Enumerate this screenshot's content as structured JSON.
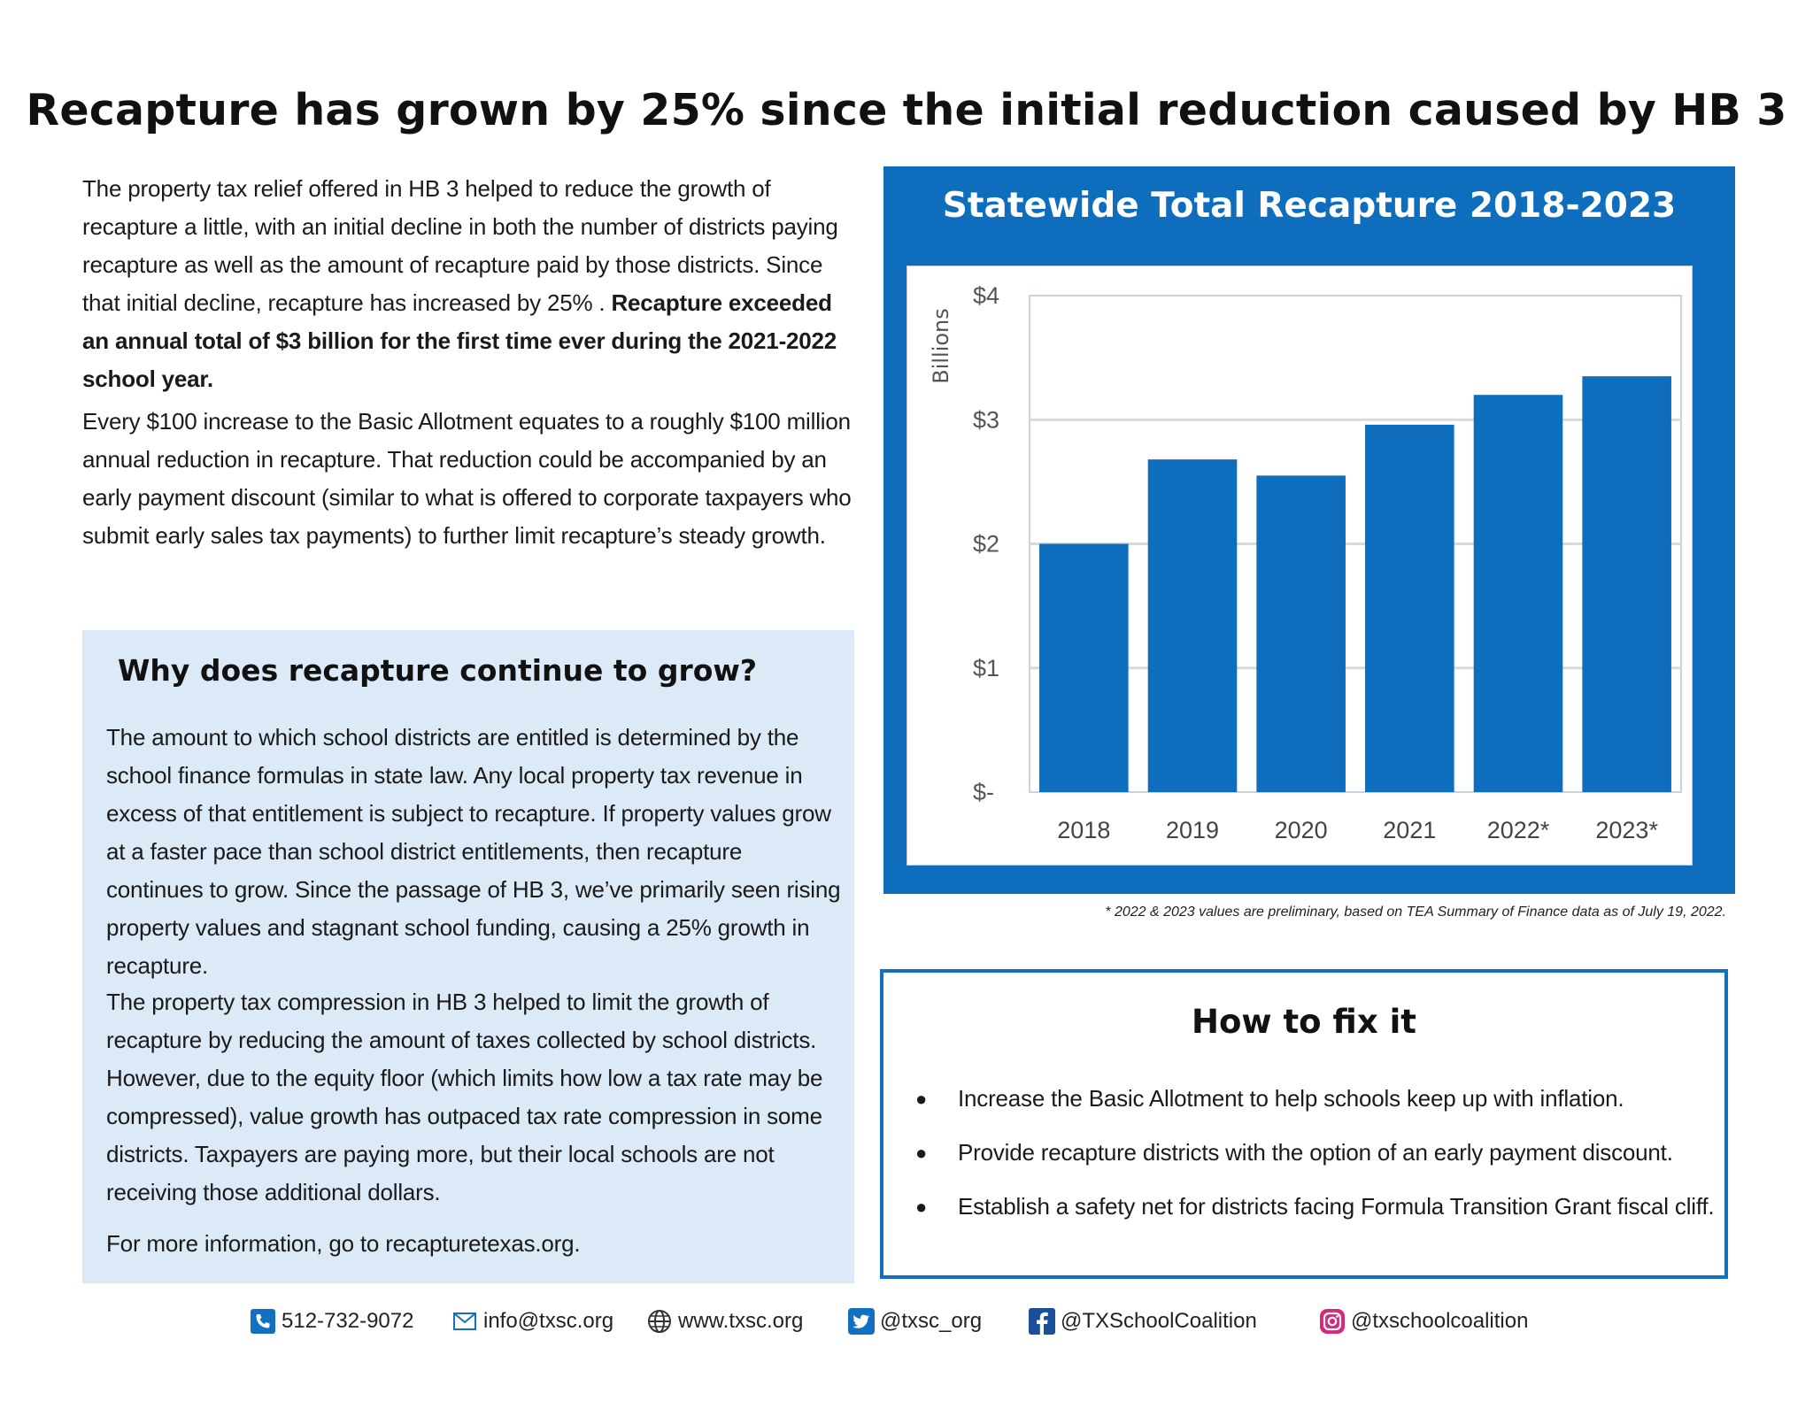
{
  "title": "Recapture has grown by 25% since the initial reduction caused by HB 3",
  "intro": {
    "p1_normal": "The property tax relief offered in HB 3 helped to reduce the growth of recapture a little, with an initial decline in both the number of districts paying recapture as well as the amount of recapture paid by those districts.  Since that initial decline, recapture has increased by 25% . ",
    "p1_bold": "Recapture exceeded an annual total of $3 billion for the first time ever during the 2021-2022 school year.",
    "p2": "Every $100 increase to the Basic Allotment equates to a roughly $100 million annual reduction in recapture.  That reduction could be accompanied by an early payment discount (similar to what is offered to corporate taxpayers who submit early sales tax payments) to further limit  recapture’s steady growth."
  },
  "why": {
    "title": "Why does recapture continue to grow?",
    "p1": "The amount to which school districts are entitled is determined by the school finance formulas in state law.  Any local property tax revenue in excess of that entitlement is subject to recapture.  If property values grow at a faster pace than school district entitlements, then recapture continues to grow.  Since the passage of HB 3, we’ve primarily seen rising property values and stagnant school funding, causing a 25% growth in recapture.",
    "p2": "The property tax compression in HB 3 helped to limit the growth of recapture by reducing the amount of taxes collected by school districts. However, due to the equity floor (which limits how low a tax rate may be compressed), value growth has outpaced tax rate compression in some districts. Taxpayers are paying more, but their local schools are not receiving those additional dollars.",
    "p3": "For more information, go to recapturetexas.org."
  },
  "chart_data": {
    "type": "bar",
    "title": "Statewide Total Recapture 2018-2023",
    "ylabel": "Billions",
    "categories": [
      "2018",
      "2019",
      "2020",
      "2021",
      "2022*",
      "2023*"
    ],
    "values": [
      2.0,
      2.68,
      2.55,
      2.96,
      3.2,
      3.35
    ],
    "ylim": [
      0,
      4
    ],
    "yticks": [
      "$-",
      "$1",
      "$2",
      "$3",
      "$4"
    ],
    "grid": true,
    "bar_color": "#0f6dbd"
  },
  "footnote": "* 2022 & 2023 values are preliminary, based on TEA Summary of Finance data as of July 19, 2022.",
  "fix": {
    "title": "How to fix it",
    "items": [
      "Increase the Basic Allotment to help schools keep up with inflation.",
      "Provide recapture districts with the option of an early payment discount.",
      "Establish a safety net for districts facing Formula Transition Grant fiscal cliff."
    ]
  },
  "contacts": {
    "phone": "512-732-9072",
    "email": "info@txsc.org",
    "web": "www.txsc.org",
    "twitter": "@txsc_org",
    "facebook": "@TXSchoolCoalition",
    "instagram": "@txschoolcoalition"
  },
  "colors": {
    "accent": "#0f6dbd",
    "panel": "#dce9f6"
  }
}
